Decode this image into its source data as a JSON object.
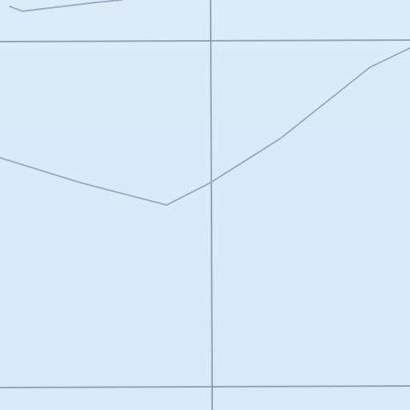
{
  "map": {
    "colors": {
      "background": "#dceaf7",
      "grid_line": "#8a98a6",
      "boundary_line": "#9aaec4"
    },
    "grid": {
      "visible": true
    },
    "boundaries": [
      {
        "name": "boundary-line-top"
      },
      {
        "name": "boundary-line-main"
      }
    ]
  }
}
